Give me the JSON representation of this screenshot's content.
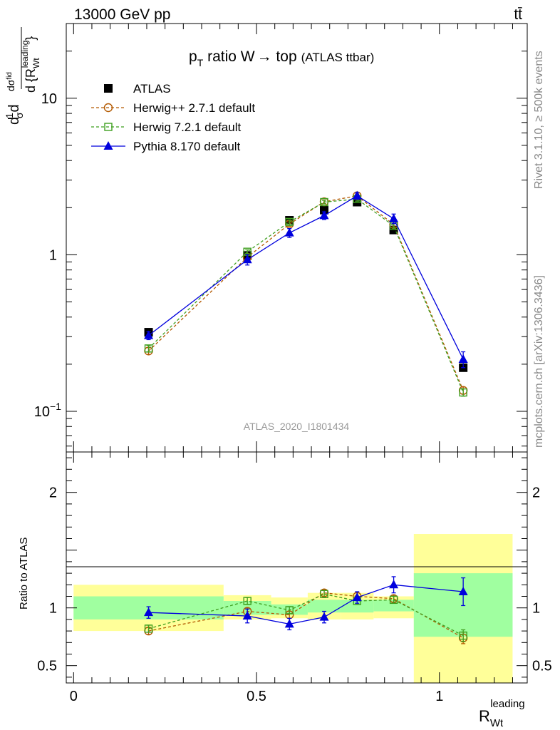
{
  "header": {
    "energy_label": "13000 GeV pp",
    "process_label": "tt̄"
  },
  "side_labels": {
    "rivet": "Rivet 3.1.10, ≥ 500k events",
    "mcplots": "mcplots.cern.ch [arXiv:1306.3436]"
  },
  "colors": {
    "atlas": "#000000",
    "herwigpp": "#b35900",
    "herwig7": "#3f9f1f",
    "pythia": "#0000dd",
    "band_inner": "#a0ffa0",
    "band_outer": "#ffff99"
  },
  "chart_data": [
    {
      "type": "line",
      "panel": "main",
      "title": "p_T ratio W → top (ATLAS ttbar)",
      "title_parts": {
        "main": "p",
        "sub": "T",
        "rest": " ratio W",
        "arrow": "→",
        "rest2": " top",
        "small": "(ATLAS ttbar)"
      },
      "analysis_label": "ATLAS_2020_I1801434",
      "ylabel": "(1/σ) dσ/d{R_Wt^leading}",
      "yscale": "log",
      "ylim": [
        0.055,
        30
      ],
      "xlim": [
        -0.02,
        1.24
      ],
      "ytick_labels": [
        {
          "value": 0.1,
          "base": "10",
          "exp": "−1"
        },
        {
          "value": 1,
          "base": "1",
          "exp": ""
        },
        {
          "value": 10,
          "base": "10",
          "exp": ""
        }
      ],
      "legend_position": "top-left",
      "x": [
        0.205,
        0.475,
        0.59,
        0.685,
        0.775,
        0.875,
        1.065
      ],
      "series": [
        {
          "name": "ATLAS",
          "marker": "filled-square",
          "values": [
            0.32,
            0.99,
            1.66,
            1.93,
            2.17,
            1.44,
            0.19
          ],
          "errors": [
            0,
            0,
            0,
            0,
            0,
            0,
            0
          ]
        },
        {
          "name": "Herwig++ 2.7.1 default",
          "marker": "open-circle",
          "dashed": true,
          "values": [
            0.243,
            0.965,
            1.57,
            2.18,
            2.38,
            1.56,
            0.136
          ],
          "errors": [
            0.012,
            0.03,
            0.05,
            0.06,
            0.07,
            0.05,
            0.007
          ]
        },
        {
          "name": "Herwig 7.2.1 default",
          "marker": "open-square",
          "dashed": true,
          "values": [
            0.252,
            1.045,
            1.62,
            2.17,
            2.27,
            1.53,
            0.132
          ],
          "errors": [
            0.012,
            0.03,
            0.05,
            0.06,
            0.07,
            0.05,
            0.007
          ]
        },
        {
          "name": "Pythia 8.170 default",
          "marker": "filled-triangle",
          "dashed": false,
          "values": [
            0.305,
            0.93,
            1.38,
            1.78,
            2.38,
            1.7,
            0.215
          ],
          "errors": [
            0.018,
            0.07,
            0.09,
            0.1,
            0.12,
            0.12,
            0.025
          ]
        }
      ]
    },
    {
      "type": "line",
      "panel": "ratio",
      "ylabel": "Ratio to ATLAS",
      "xlabel": "R_Wt^leading",
      "xlabel_parts": {
        "main": "R",
        "sub": "Wt",
        "sup": "leading"
      },
      "ylim": [
        0.35,
        2.35
      ],
      "xlim": [
        -0.02,
        1.24
      ],
      "ytick_labels": [
        "0.5",
        "1",
        "2"
      ],
      "xtick_labels": [
        "0",
        "0.5",
        "1"
      ],
      "x": [
        0.205,
        0.475,
        0.59,
        0.685,
        0.775,
        0.875,
        1.065
      ],
      "bins": [
        {
          "xlo": 0.0,
          "xhi": 0.41,
          "inner": [
            0.9,
            1.1
          ],
          "outer": [
            0.8,
            1.2
          ]
        },
        {
          "xlo": 0.41,
          "xhi": 0.54,
          "inner": [
            0.94,
            1.06
          ],
          "outer": [
            0.9,
            1.11
          ]
        },
        {
          "xlo": 0.54,
          "xhi": 0.64,
          "inner": [
            0.94,
            1.03
          ],
          "outer": [
            0.91,
            1.09
          ]
        },
        {
          "xlo": 0.64,
          "xhi": 0.73,
          "inner": [
            0.96,
            1.07
          ],
          "outer": [
            0.9,
            1.13
          ]
        },
        {
          "xlo": 0.73,
          "xhi": 0.82,
          "inner": [
            0.96,
            1.07
          ],
          "outer": [
            0.9,
            1.13
          ]
        },
        {
          "xlo": 0.82,
          "xhi": 0.93,
          "inner": [
            0.97,
            1.07
          ],
          "outer": [
            0.91,
            1.1
          ]
        },
        {
          "xlo": 0.93,
          "xhi": 1.2,
          "inner": [
            0.75,
            1.3
          ],
          "outer": [
            0.35,
            1.64
          ]
        }
      ],
      "series": [
        {
          "name": "Herwig++ 2.7.1 default",
          "values": [
            0.8,
            0.97,
            0.94,
            1.13,
            1.1,
            1.08,
            0.74
          ],
          "errors": [
            0.03,
            0.03,
            0.03,
            0.03,
            0.03,
            0.03,
            0.05
          ]
        },
        {
          "name": "Herwig 7.2.1 default",
          "values": [
            0.82,
            1.06,
            0.98,
            1.12,
            1.06,
            1.07,
            0.76
          ],
          "errors": [
            0.03,
            0.03,
            0.03,
            0.03,
            0.03,
            0.03,
            0.05
          ]
        },
        {
          "name": "Pythia 8.170 default",
          "values": [
            0.96,
            0.93,
            0.86,
            0.92,
            1.09,
            1.2,
            1.14
          ],
          "errors": [
            0.05,
            0.06,
            0.05,
            0.05,
            0.05,
            0.07,
            0.12
          ]
        }
      ]
    }
  ]
}
